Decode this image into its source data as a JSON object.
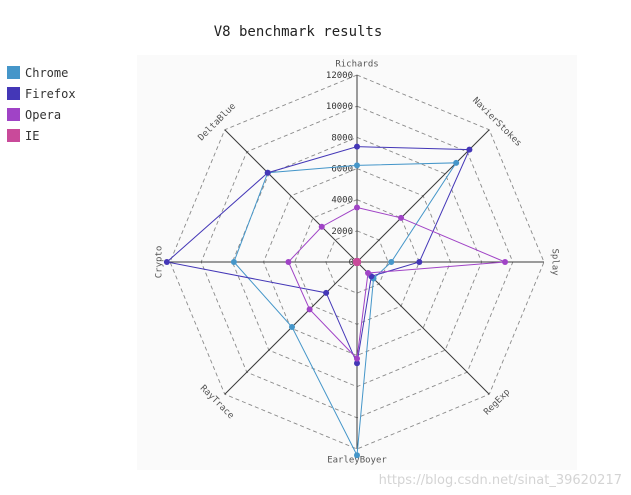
{
  "chart_data": {
    "type": "radar",
    "title": "V8 benchmark results",
    "axes": [
      "Richards",
      "NavierStokes",
      "Splay",
      "RegExp",
      "EarleyBoyer",
      "RayTrace",
      "Crypto",
      "DeltaBlue"
    ],
    "ticks": [
      "0",
      "2000",
      "4000",
      "6000",
      "8000",
      "10000",
      "12000"
    ],
    "rmax": 12000,
    "grid": true,
    "legend_position": "top-left",
    "series": [
      {
        "name": "Chrome",
        "color": "#4596c9",
        "values": [
          6200,
          9000,
          2200,
          1500,
          12400,
          5900,
          7900,
          8100
        ]
      },
      {
        "name": "Firefox",
        "color": "#4437b7",
        "values": [
          7400,
          10200,
          4000,
          1300,
          6500,
          2800,
          12200,
          8100
        ]
      },
      {
        "name": "Opera",
        "color": "#a043c6",
        "values": [
          3500,
          4000,
          9500,
          1000,
          6200,
          4300,
          4400,
          3200
        ]
      },
      {
        "name": "IE",
        "color": "#c94a9a",
        "values": [
          0,
          0,
          0,
          0,
          0,
          0,
          0,
          0
        ]
      }
    ]
  },
  "watermark": "https://blog.csdn.net/sinat_39620217"
}
